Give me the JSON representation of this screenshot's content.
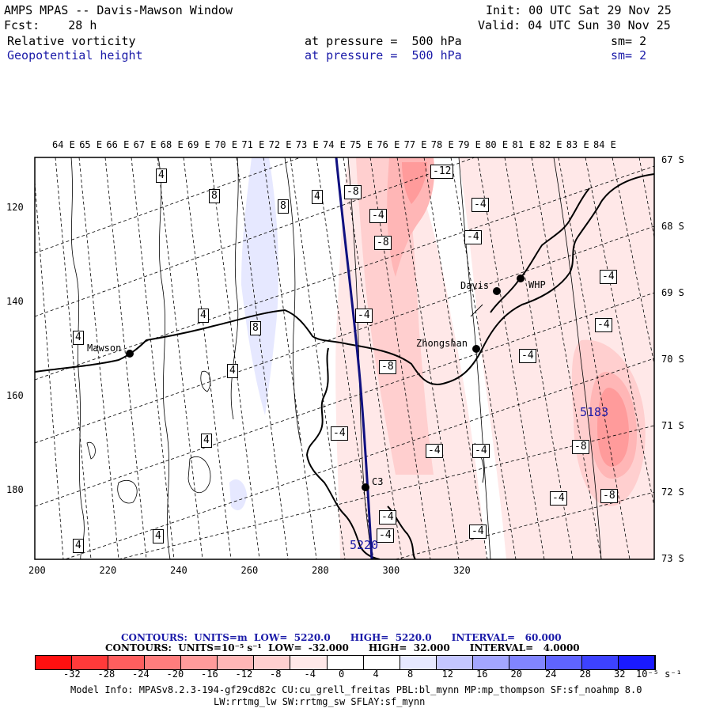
{
  "header": {
    "title": "AMPS MPAS -- Davis-Mawson Window",
    "forecast": "Fcst:    28 h",
    "init": "Init: 00 UTC Sat 29 Nov 25",
    "valid": "Valid: 04 UTC Sun 30 Nov 25",
    "field1": {
      "name": "Relative vorticity",
      "level": "at pressure =  500 hPa",
      "sm": "sm= 2"
    },
    "field2": {
      "name": "Geopotential height",
      "level": "at pressure =  500 hPa",
      "sm": "sm= 2"
    }
  },
  "map": {
    "top_lon_labels": [
      "64 E",
      "65 E",
      "66 E",
      "67 E",
      "68 E",
      "69 E",
      "70 E",
      "71 E",
      "72 E",
      "73 E",
      "74 E",
      "75 E",
      "76 E",
      "77 E",
      "78 E",
      "79 E",
      "80 E",
      "81 E",
      "82 E",
      "83 E",
      "84 E"
    ],
    "right_lat_labels": [
      "67 S",
      "68 S",
      "69 S",
      "70 S",
      "71 S",
      "72 S",
      "73 S"
    ],
    "bottom_x_labels": [
      "200",
      "220",
      "240",
      "260",
      "280",
      "300",
      "320"
    ],
    "left_y_labels": [
      "120",
      "140",
      "160",
      "180"
    ],
    "stations": [
      {
        "name": "Mawson"
      },
      {
        "name": "Davis"
      },
      {
        "name": "WHP"
      },
      {
        "name": "Zhongshan"
      },
      {
        "name": "C3"
      }
    ],
    "vort_labels": [
      "4",
      "8",
      "8",
      "4",
      "-8",
      "-4",
      "-8",
      "-12",
      "-4",
      "-4",
      "4",
      "8",
      "-4",
      "4",
      "-8",
      "-4",
      "4",
      "-4",
      "-4",
      "-4",
      "-4",
      "-4",
      "-4",
      "-8",
      "-8",
      "-4",
      "4",
      "4",
      "4",
      "-4",
      "-4"
    ],
    "height_labels": [
      "5183",
      "5220"
    ]
  },
  "contours_line1": {
    "label": "CONTOURS:  UNITS=m  LOW=  5220.0      HIGH=  5220.0      INTERVAL=   60.000"
  },
  "contours_line2": {
    "label": "CONTOURS:  UNITS=10⁻⁵ s⁻¹  LOW=  -32.000      HIGH=  32.000      INTERVAL=   4.0000"
  },
  "colorbar": {
    "colors": [
      "#ff1010",
      "#ff3a3a",
      "#ff5e5e",
      "#ff7d7d",
      "#ff9b9b",
      "#ffb6b6",
      "#ffcfcf",
      "#ffe8e8",
      "#ffffff",
      "#ffffff",
      "#e6e8ff",
      "#c4c6ff",
      "#a3a6ff",
      "#8185ff",
      "#5f64ff",
      "#3d42ff",
      "#1a1aff"
    ],
    "labels": [
      "-32",
      "-28",
      "-24",
      "-20",
      "-16",
      "-12",
      "-8",
      "-4",
      "0",
      "4",
      "8",
      "12",
      "16",
      "20",
      "24",
      "28",
      "32"
    ],
    "units": "10⁻⁵ s⁻¹"
  },
  "footer": {
    "line1": "Model Info: MPASv8.2.3-194-gf29cd82c CU:cu_grell_freitas PBL:bl_mynn MP:mp_thompson SF:sf_noahmp 8.0",
    "line2": "LW:rrtmg_lw SW:rrtmg_sw SFLAY:sf_mynn"
  }
}
